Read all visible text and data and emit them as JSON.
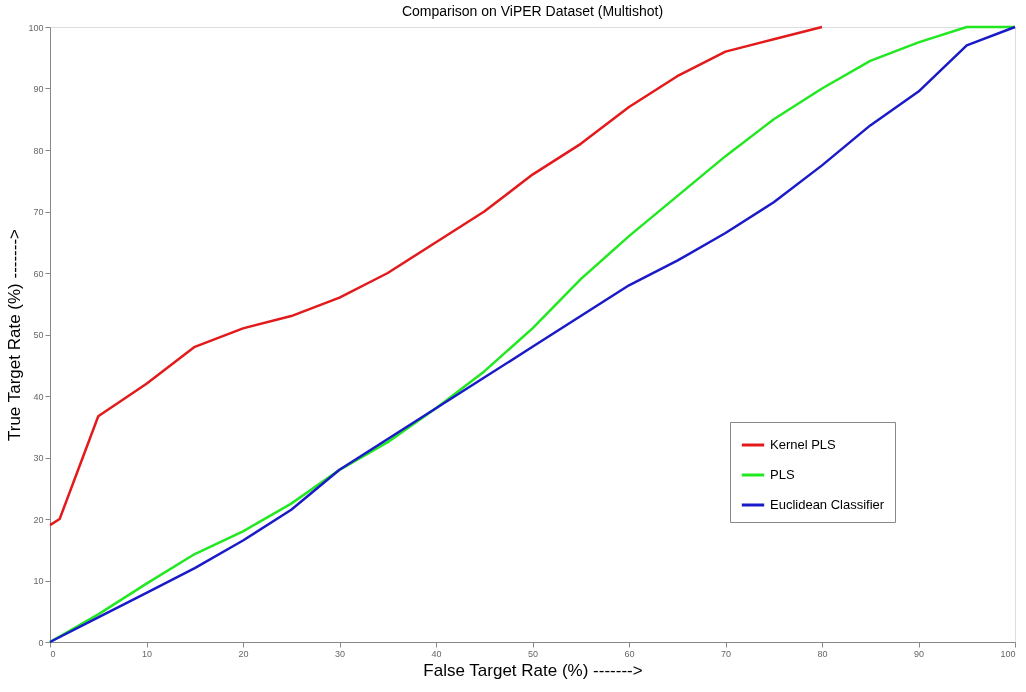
{
  "chart_data": {
    "type": "line",
    "title": "Comparison on ViPER Dataset (Multishot)",
    "xlabel": "False Target Rate (%) ------->",
    "ylabel": "True Target Rate (%) ------->",
    "xlim": [
      0,
      100
    ],
    "ylim": [
      0,
      100
    ],
    "xticks": [
      0,
      10,
      20,
      30,
      40,
      50,
      60,
      70,
      80,
      90,
      100
    ],
    "yticks": [
      0,
      10,
      20,
      30,
      40,
      50,
      60,
      70,
      80,
      90,
      100
    ],
    "grid": false,
    "legend": "bottom right",
    "marker": "none",
    "line_style": "solid",
    "series": [
      {
        "name": "Kernel PLS",
        "color": "#e31a1c",
        "x": [
          0,
          1,
          5,
          10,
          15,
          20,
          25,
          30,
          35,
          40,
          45,
          50,
          55,
          60,
          65,
          70,
          75,
          80
        ],
        "values": [
          19,
          20,
          36.7,
          42,
          48,
          51,
          53,
          56,
          60,
          65,
          70,
          76,
          81,
          87,
          92,
          96,
          98,
          100
        ]
      },
      {
        "name": "PLS",
        "color": "#22e822",
        "x": [
          0,
          5,
          10,
          15,
          20,
          25,
          30,
          35,
          40,
          45,
          50,
          55,
          60,
          65,
          70,
          75,
          80,
          85,
          90,
          95,
          100
        ],
        "values": [
          0,
          4.5,
          9.5,
          14.3,
          18,
          22.5,
          28,
          32.5,
          38,
          44,
          51,
          59,
          66,
          72.5,
          79,
          85,
          90,
          94.5,
          97.5,
          100,
          100
        ]
      },
      {
        "name": "Euclidean Classifier",
        "color": "#1a1ac8",
        "x": [
          0,
          5,
          10,
          15,
          20,
          25,
          30,
          35,
          40,
          45,
          50,
          55,
          60,
          65,
          70,
          75,
          80,
          85,
          90,
          95,
          100
        ],
        "values": [
          0,
          4,
          8,
          12,
          16.5,
          21.5,
          28,
          33,
          38,
          43,
          48,
          53,
          58,
          62,
          66.5,
          71.5,
          77.5,
          84,
          89.5,
          97,
          100
        ]
      }
    ]
  }
}
